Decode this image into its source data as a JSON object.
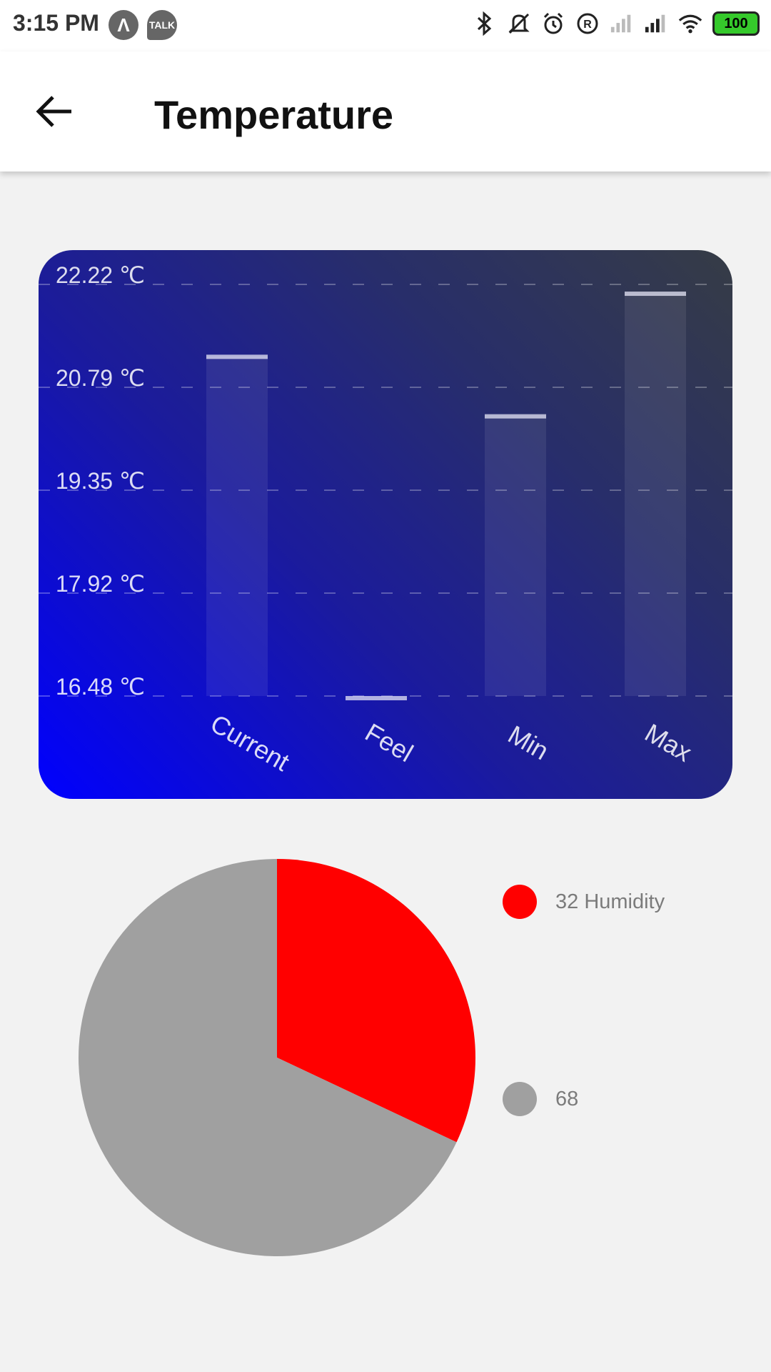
{
  "status_bar": {
    "time": "3:15 PM",
    "left_icons": [
      "app-icon",
      "talk-icon"
    ],
    "talk_label": "TALK",
    "battery": "100"
  },
  "header": {
    "title": "Temperature"
  },
  "chart_data": [
    {
      "type": "bar",
      "categories": [
        "Current",
        "Feel",
        "Min",
        "Max"
      ],
      "values": [
        21.21,
        16.45,
        20.38,
        22.09
      ],
      "yticks": [
        "22.22 ℃",
        "20.79 ℃",
        "19.35 ℃",
        "17.92 ℃",
        "16.48 ℃"
      ],
      "ylim": [
        16.48,
        22.22
      ],
      "grid": true
    },
    {
      "type": "pie",
      "values": [
        32,
        68
      ],
      "labels": [
        "32 Humidity",
        "68"
      ],
      "colors": [
        "#ff0000",
        "#a0a0a0"
      ]
    }
  ]
}
